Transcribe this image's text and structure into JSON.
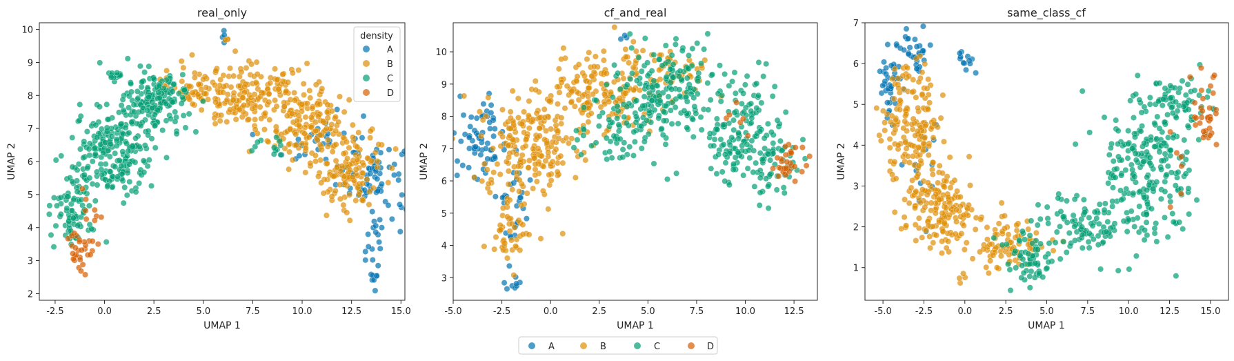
{
  "chart_data": [
    {
      "type": "scatter",
      "title": "real_only",
      "xlabel": "UMAP 1",
      "ylabel": "UMAP 2",
      "xlim": [
        -3.3,
        15.2
      ],
      "ylim": [
        1.8,
        10.2
      ],
      "xticks": [
        -2.5,
        0.0,
        2.5,
        5.0,
        7.5,
        10.0,
        12.5,
        15.0
      ],
      "yticks": [
        2,
        3,
        4,
        5,
        6,
        7,
        8,
        9,
        10
      ],
      "legend": {
        "title": "density",
        "placement": "top-right"
      },
      "grid": false,
      "series_regions": {
        "A": [
          {
            "x": 13.8,
            "y": 5.5,
            "sx": 0.8,
            "sy": 0.6,
            "n": 60
          },
          {
            "x": 11.0,
            "y": 6.6,
            "sx": 1.0,
            "sy": 0.6,
            "n": 35
          },
          {
            "x": 13.6,
            "y": 3.4,
            "sx": 0.25,
            "sy": 0.7,
            "n": 22
          },
          {
            "x": 6.0,
            "y": 9.7,
            "sx": 0.1,
            "sy": 0.12,
            "n": 4
          }
        ],
        "B": [
          {
            "x": 7.5,
            "y": 8.0,
            "sx": 1.6,
            "sy": 0.45,
            "n": 190
          },
          {
            "x": 10.5,
            "y": 7.0,
            "sx": 1.1,
            "sy": 0.55,
            "n": 140
          },
          {
            "x": 12.3,
            "y": 5.7,
            "sx": 0.9,
            "sy": 0.6,
            "n": 110
          },
          {
            "x": 4.3,
            "y": 8.2,
            "sx": 0.7,
            "sy": 0.3,
            "n": 40
          },
          {
            "x": 6.2,
            "y": 9.75,
            "sx": 0.1,
            "sy": 0.08,
            "n": 3
          }
        ],
        "C": [
          {
            "x": 0.5,
            "y": 6.2,
            "sx": 1.0,
            "sy": 0.7,
            "n": 200
          },
          {
            "x": 2.6,
            "y": 7.8,
            "sx": 0.9,
            "sy": 0.45,
            "n": 160
          },
          {
            "x": -1.6,
            "y": 4.6,
            "sx": 0.5,
            "sy": 0.6,
            "n": 80
          },
          {
            "x": 0.5,
            "y": 8.6,
            "sx": 0.3,
            "sy": 0.05,
            "n": 12
          },
          {
            "x": 8.3,
            "y": 6.5,
            "sx": 0.5,
            "sy": 0.3,
            "n": 12
          }
        ],
        "D": [
          {
            "x": -1.3,
            "y": 3.4,
            "sx": 0.4,
            "sy": 0.3,
            "n": 30
          },
          {
            "x": -0.8,
            "y": 4.6,
            "sx": 0.3,
            "sy": 0.3,
            "n": 8
          }
        ]
      }
    },
    {
      "type": "scatter",
      "title": "cf_and_real",
      "xlabel": "UMAP 1",
      "ylabel": "UMAP 2",
      "xlim": [
        -5.0,
        13.7
      ],
      "ylim": [
        2.3,
        10.9
      ],
      "xticks": [
        -5.0,
        -2.5,
        0.0,
        2.5,
        5.0,
        7.5,
        10.0,
        12.5
      ],
      "yticks": [
        3,
        4,
        5,
        6,
        7,
        8,
        9,
        10
      ],
      "legend": {
        "title": "",
        "placement": "bottom-center-outside"
      },
      "grid": false,
      "series_regions": {
        "A": [
          {
            "x": -3.5,
            "y": 7.3,
            "sx": 0.6,
            "sy": 0.6,
            "n": 60
          },
          {
            "x": -2.0,
            "y": 5.3,
            "sx": 0.5,
            "sy": 0.8,
            "n": 30
          },
          {
            "x": -1.9,
            "y": 2.8,
            "sx": 0.2,
            "sy": 0.15,
            "n": 8
          },
          {
            "x": 3.7,
            "y": 10.4,
            "sx": 0.2,
            "sy": 0.1,
            "n": 3
          }
        ],
        "B": [
          {
            "x": -1.0,
            "y": 7.2,
            "sx": 1.3,
            "sy": 0.8,
            "n": 200
          },
          {
            "x": 2.5,
            "y": 8.8,
            "sx": 1.3,
            "sy": 0.6,
            "n": 150
          },
          {
            "x": -2.0,
            "y": 4.5,
            "sx": 0.5,
            "sy": 0.8,
            "n": 50
          },
          {
            "x": 6.0,
            "y": 9.3,
            "sx": 1.0,
            "sy": 0.5,
            "n": 50
          }
        ],
        "C": [
          {
            "x": 6.0,
            "y": 8.8,
            "sx": 1.3,
            "sy": 0.7,
            "n": 180
          },
          {
            "x": 9.8,
            "y": 7.5,
            "sx": 1.0,
            "sy": 0.8,
            "n": 150
          },
          {
            "x": 11.7,
            "y": 6.6,
            "sx": 0.6,
            "sy": 0.4,
            "n": 40
          },
          {
            "x": 3.5,
            "y": 7.5,
            "sx": 1.0,
            "sy": 0.6,
            "n": 60
          }
        ],
        "D": [
          {
            "x": 12.3,
            "y": 6.5,
            "sx": 0.5,
            "sy": 0.35,
            "n": 30
          },
          {
            "x": 9.8,
            "y": 7.9,
            "sx": 0.5,
            "sy": 0.4,
            "n": 6
          }
        ]
      }
    },
    {
      "type": "scatter",
      "title": "same_class_cf",
      "xlabel": "UMAP 1",
      "ylabel": "UMAP 2",
      "xlim": [
        -6.1,
        16.1
      ],
      "ylim": [
        0.2,
        7.0
      ],
      "xticks": [
        -5.0,
        -2.5,
        0.0,
        2.5,
        5.0,
        7.5,
        10.0,
        12.5,
        15.0
      ],
      "yticks": [
        1,
        2,
        3,
        4,
        5,
        6,
        7
      ],
      "legend": {
        "title": "",
        "placement": "none"
      },
      "grid": false,
      "series_regions": {
        "A": [
          {
            "x": -4.5,
            "y": 5.6,
            "sx": 0.35,
            "sy": 0.45,
            "n": 40
          },
          {
            "x": -3.0,
            "y": 6.3,
            "sx": 0.4,
            "sy": 0.3,
            "n": 30
          },
          {
            "x": 0.1,
            "y": 6.0,
            "sx": 0.3,
            "sy": 0.2,
            "n": 12
          },
          {
            "x": -2.5,
            "y": 3.5,
            "sx": 0.5,
            "sy": 0.5,
            "n": 12
          }
        ],
        "B": [
          {
            "x": -3.2,
            "y": 4.5,
            "sx": 0.9,
            "sy": 0.8,
            "n": 160
          },
          {
            "x": -1.5,
            "y": 2.5,
            "sx": 1.0,
            "sy": 0.5,
            "n": 150
          },
          {
            "x": 2.5,
            "y": 1.6,
            "sx": 1.2,
            "sy": 0.3,
            "n": 90
          },
          {
            "x": -0.2,
            "y": 0.7,
            "sx": 0.1,
            "sy": 0.1,
            "n": 4
          }
        ],
        "C": [
          {
            "x": 11.0,
            "y": 3.5,
            "sx": 1.5,
            "sy": 0.9,
            "n": 230
          },
          {
            "x": 7.5,
            "y": 2.0,
            "sx": 1.5,
            "sy": 0.4,
            "n": 100
          },
          {
            "x": 4.0,
            "y": 1.2,
            "sx": 0.8,
            "sy": 0.3,
            "n": 60
          },
          {
            "x": 13.0,
            "y": 5.1,
            "sx": 1.0,
            "sy": 0.25,
            "n": 50
          }
        ],
        "D": [
          {
            "x": 14.8,
            "y": 4.6,
            "sx": 0.4,
            "sy": 0.5,
            "n": 35
          },
          {
            "x": 12.5,
            "y": 3.5,
            "sx": 0.8,
            "sy": 0.5,
            "n": 6
          }
        ]
      }
    }
  ],
  "legend": {
    "title": "density",
    "items": [
      {
        "label": "A",
        "color": "#0173b2"
      },
      {
        "label": "B",
        "color": "#de8f05"
      },
      {
        "label": "C",
        "color": "#029e73"
      },
      {
        "label": "D",
        "color": "#d55e00"
      }
    ]
  }
}
